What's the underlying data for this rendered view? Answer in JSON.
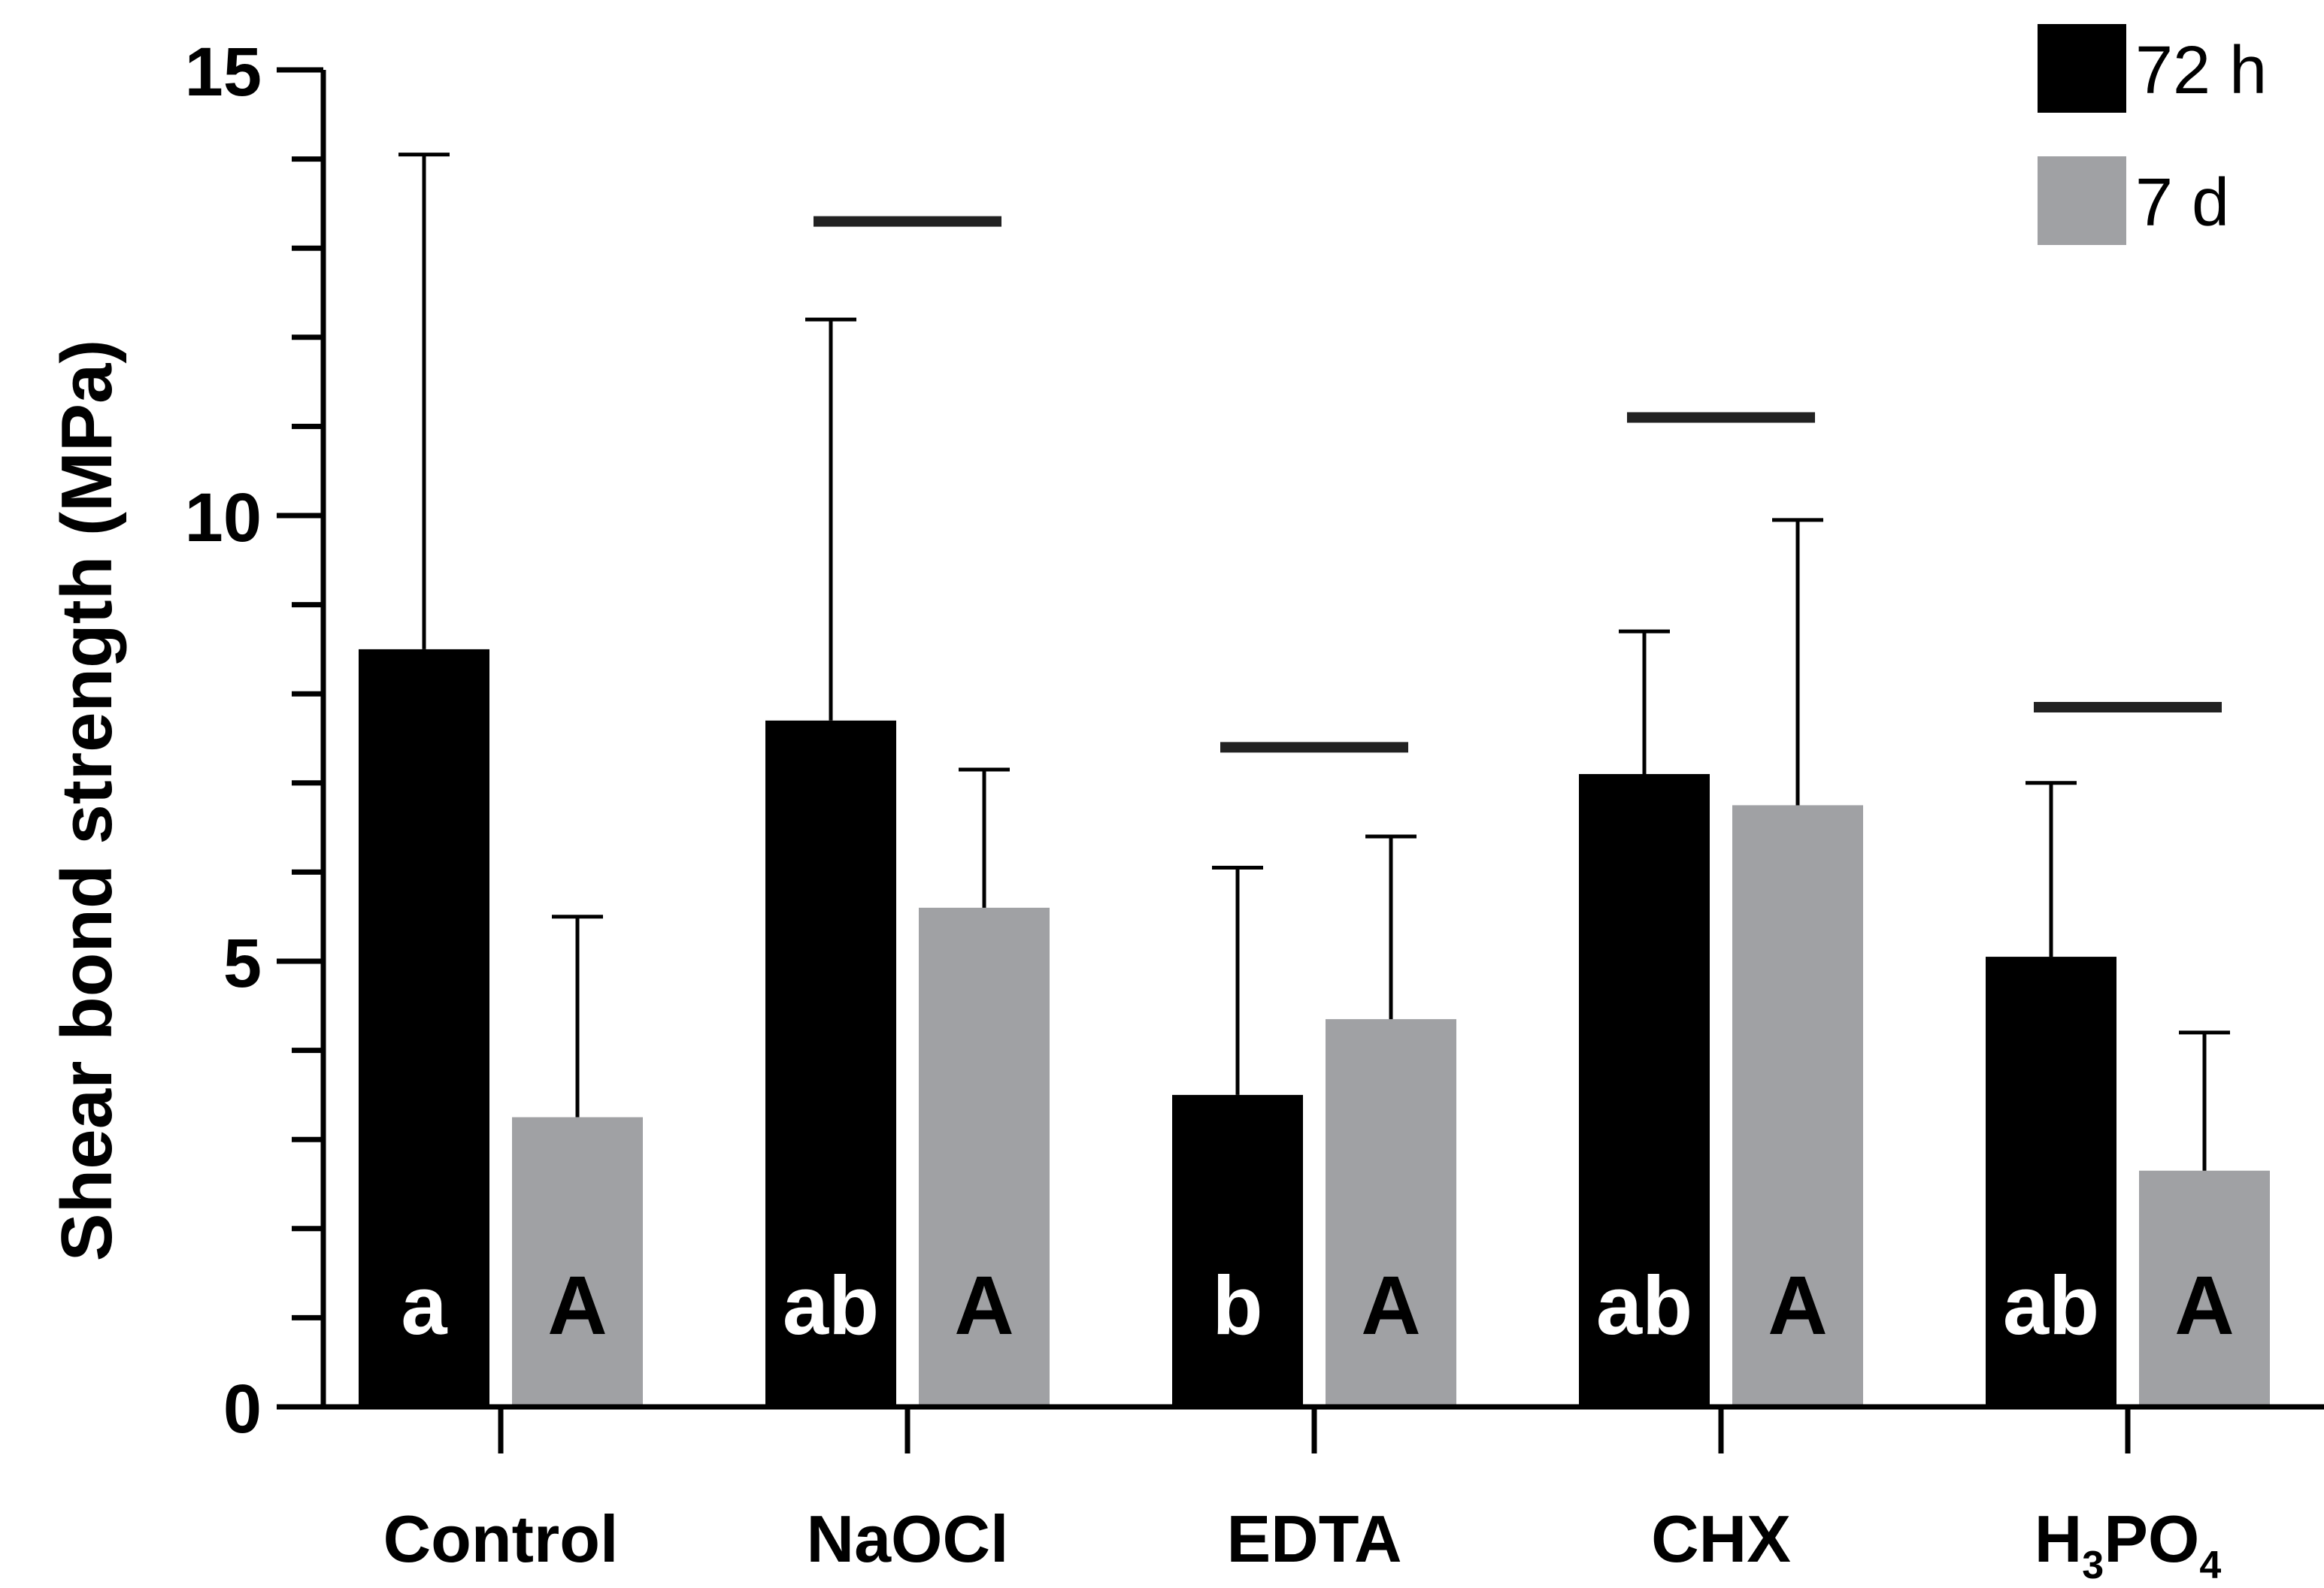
{
  "chart_data": {
    "type": "bar",
    "title": "",
    "xlabel": "",
    "ylabel": "Shear bond strength (MPa)",
    "ylim": [
      0,
      15
    ],
    "yticks_major": [
      0,
      5,
      10,
      15
    ],
    "yticks_minor_step": 1,
    "categories": [
      {
        "label": "Control",
        "base": "Control",
        "formula": null
      },
      {
        "label": "NaOCl",
        "base": "NaOCl",
        "formula": null
      },
      {
        "label": "EDTA",
        "base": "EDTA",
        "formula": null
      },
      {
        "label": "CHX",
        "base": "CHX",
        "formula": null
      },
      {
        "label": "H3PO4",
        "base": null,
        "formula": [
          [
            "H",
            ""
          ],
          [
            "3",
            "sub"
          ],
          [
            "PO",
            ""
          ],
          [
            "4",
            "sub"
          ]
        ]
      }
    ],
    "series": [
      {
        "name": "72 h",
        "color": "#000000",
        "values": [
          8.5,
          7.7,
          3.5,
          7.1,
          5.05
        ],
        "error": [
          5.55,
          4.5,
          2.55,
          1.6,
          1.95
        ],
        "letters": [
          "a",
          "ab",
          "b",
          "ab",
          "ab"
        ]
      },
      {
        "name": "7 d",
        "color": "#A0A1A4",
        "values": [
          3.25,
          5.6,
          4.35,
          6.75,
          2.65
        ],
        "error": [
          2.25,
          1.55,
          2.05,
          3.2,
          1.55
        ],
        "letters": [
          "A",
          "A",
          "A",
          "A",
          "A"
        ]
      }
    ],
    "significance_bars": [
      null,
      13.3,
      7.4,
      11.1,
      7.85
    ],
    "legend_position": "top-right"
  }
}
